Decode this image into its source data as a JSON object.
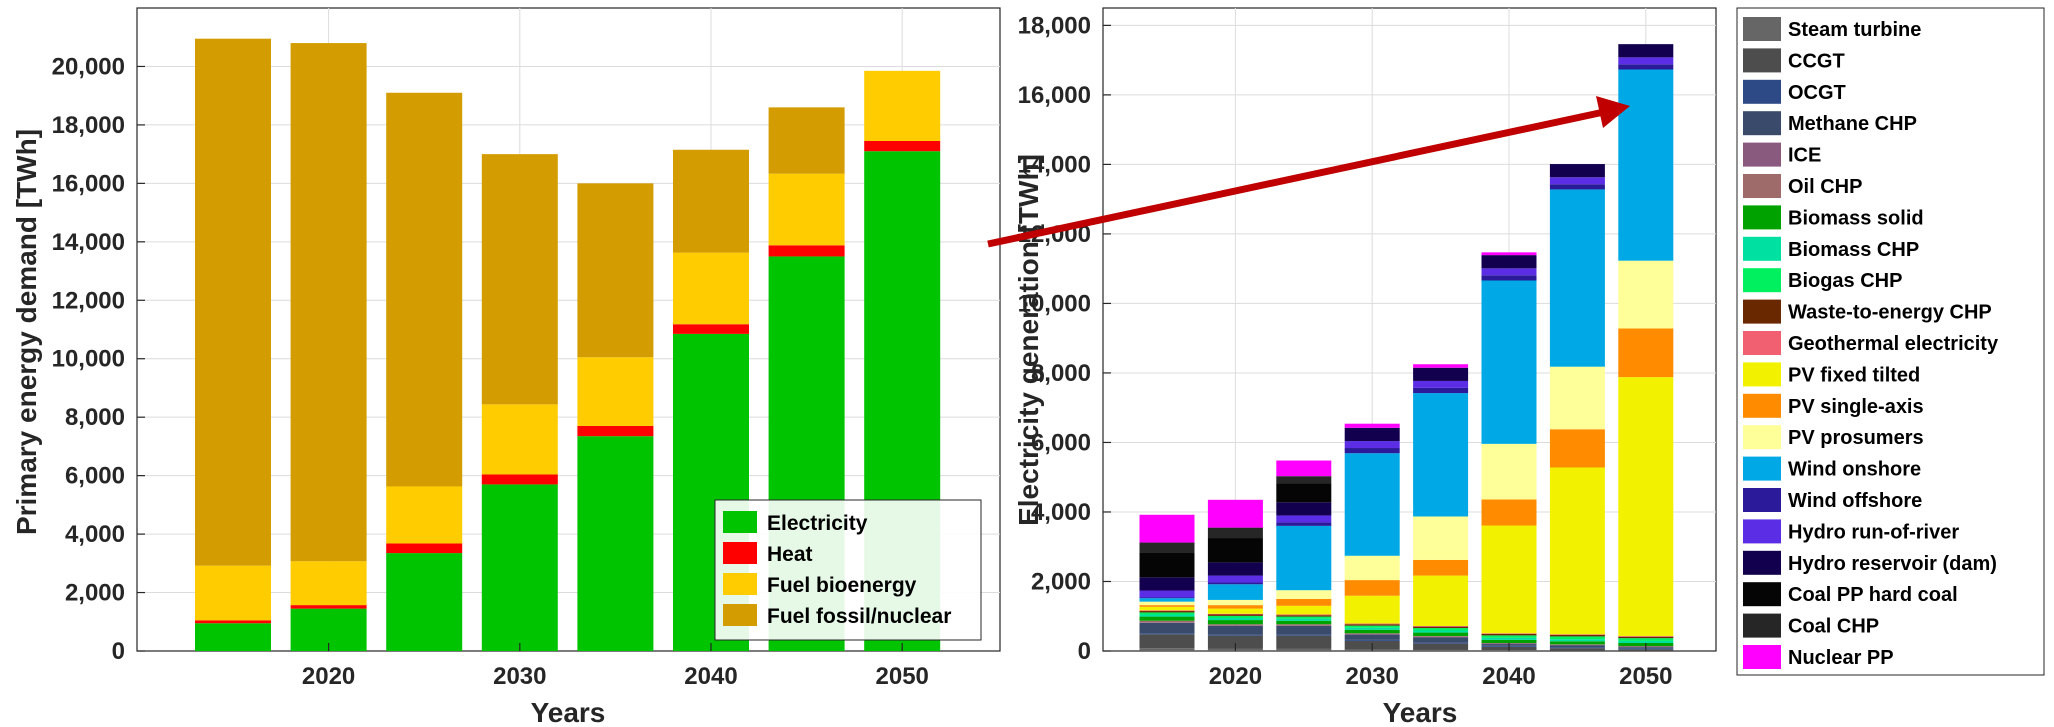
{
  "chart_data": [
    {
      "type": "bar",
      "stacked": true,
      "xlabel": "Years",
      "ylabel": "Primary energy demand [TWh]",
      "categories": [
        "2015",
        "2020",
        "2025",
        "2030",
        "2035",
        "2040",
        "2045",
        "2050"
      ],
      "xticks": [
        "2020",
        "2030",
        "2040",
        "2050"
      ],
      "ylim": [
        0,
        22000
      ],
      "yticks": [
        "0",
        "2,000",
        "4,000",
        "6,000",
        "8,000",
        "10,000",
        "12,000",
        "14,000",
        "16,000",
        "18,000",
        "20,000"
      ],
      "grid": true,
      "legend_position": "bottom-right",
      "series": [
        {
          "name": "Electricity",
          "color": "#00c400",
          "values": [
            950,
            1450,
            3350,
            5700,
            7350,
            10850,
            13500,
            17100
          ]
        },
        {
          "name": "Heat",
          "color": "#ff0000",
          "values": [
            100,
            120,
            330,
            340,
            350,
            330,
            380,
            350
          ]
        },
        {
          "name": "Fuel bioenergy",
          "color": "#ffcc00",
          "values": [
            1870,
            1500,
            1950,
            2400,
            2350,
            2450,
            2450,
            2400
          ]
        },
        {
          "name": "Fuel fossil/nuclear",
          "color": "#d39c00",
          "values": [
            18030,
            17730,
            13470,
            8560,
            5950,
            3520,
            2270,
            0
          ]
        }
      ]
    },
    {
      "type": "bar",
      "stacked": true,
      "xlabel": "Years",
      "ylabel": "Electricity generation [TWh]",
      "categories": [
        "2015",
        "2020",
        "2025",
        "2030",
        "2035",
        "2040",
        "2045",
        "2050"
      ],
      "xticks": [
        "2020",
        "2030",
        "2040",
        "2050"
      ],
      "ylim": [
        0,
        18500
      ],
      "yticks": [
        "0",
        "2,000",
        "4,000",
        "6,000",
        "8,000",
        "10,000",
        "12,000",
        "14,000",
        "16,000",
        "18,000"
      ],
      "grid": true,
      "legend_position": "outside-right",
      "series": [
        {
          "name": "Steam turbine",
          "color": "#666666",
          "values": [
            80,
            60,
            60,
            40,
            30,
            20,
            10,
            0
          ]
        },
        {
          "name": "CCGT",
          "color": "#4d4d4d",
          "values": [
            400,
            380,
            380,
            250,
            180,
            100,
            70,
            50
          ]
        },
        {
          "name": "OCGT",
          "color": "#2e4a86",
          "values": [
            30,
            30,
            30,
            30,
            30,
            30,
            30,
            30
          ]
        },
        {
          "name": "Methane CHP",
          "color": "#3a4a6a",
          "values": [
            300,
            250,
            250,
            150,
            150,
            50,
            50,
            30
          ]
        },
        {
          "name": "ICE",
          "color": "#8a5a7e",
          "values": [
            20,
            20,
            20,
            20,
            20,
            20,
            20,
            20
          ]
        },
        {
          "name": "Oil CHP",
          "color": "#9e6a6a",
          "values": [
            40,
            30,
            30,
            20,
            20,
            10,
            10,
            10
          ]
        },
        {
          "name": "Biomass solid",
          "color": "#00a200",
          "values": [
            120,
            120,
            100,
            100,
            100,
            90,
            90,
            90
          ]
        },
        {
          "name": "Biomass CHP",
          "color": "#00e0a0",
          "values": [
            60,
            60,
            60,
            60,
            60,
            60,
            60,
            60
          ]
        },
        {
          "name": "Biogas CHP",
          "color": "#00f060",
          "values": [
            60,
            60,
            60,
            60,
            70,
            70,
            80,
            80
          ]
        },
        {
          "name": "Waste-to-energy CHP",
          "color": "#6a2800",
          "values": [
            40,
            40,
            40,
            40,
            40,
            40,
            40,
            40
          ]
        },
        {
          "name": "Geothermal electricity",
          "color": "#f06070",
          "values": [
            20,
            20,
            20,
            20,
            20,
            20,
            20,
            20
          ]
        },
        {
          "name": "PV fixed tilted",
          "color": "#f2f200",
          "values": [
            100,
            150,
            250,
            800,
            1450,
            3100,
            4800,
            7450
          ]
        },
        {
          "name": "PV single-axis",
          "color": "#ff8c00",
          "values": [
            50,
            100,
            200,
            450,
            450,
            750,
            1100,
            1400
          ]
        },
        {
          "name": "PV prosumers",
          "color": "#ffff99",
          "values": [
            100,
            150,
            250,
            700,
            1250,
            1600,
            1800,
            1950
          ]
        },
        {
          "name": "Wind onshore",
          "color": "#00a8e6",
          "values": [
            100,
            450,
            1850,
            2950,
            3550,
            4700,
            5100,
            5500
          ]
        },
        {
          "name": "Wind offshore",
          "color": "#2b1a9a",
          "values": [
            20,
            50,
            100,
            150,
            150,
            150,
            150,
            150
          ]
        },
        {
          "name": "Hydro run-of-river",
          "color": "#5b2ee6",
          "values": [
            200,
            200,
            200,
            200,
            200,
            200,
            200,
            200
          ]
        },
        {
          "name": "Hydro reservoir (dam)",
          "color": "#12004e",
          "values": [
            380,
            380,
            380,
            380,
            380,
            380,
            380,
            380
          ]
        },
        {
          "name": "Coal PP hard coal",
          "color": "#050505",
          "values": [
            700,
            700,
            550,
            0,
            0,
            0,
            0,
            0
          ]
        },
        {
          "name": "Coal CHP",
          "color": "#262626",
          "values": [
            300,
            300,
            200,
            0,
            0,
            0,
            0,
            0
          ]
        },
        {
          "name": "Nuclear PP",
          "color": "#ff00ff",
          "values": [
            800,
            800,
            450,
            120,
            100,
            80,
            0,
            0
          ]
        }
      ]
    }
  ],
  "colors": {
    "arrow": "#c00000"
  }
}
